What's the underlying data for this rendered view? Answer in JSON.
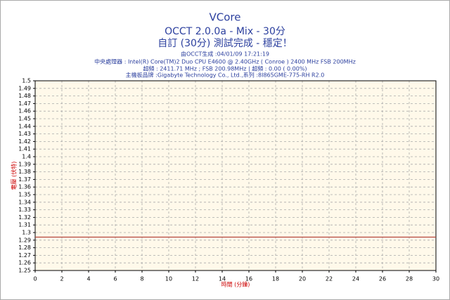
{
  "chart_data": {
    "type": "line",
    "title": "VCore",
    "subtitle": [
      "OCCT 2.0.0a - Mix - 30分",
      "自訂 (30分) 測試完成 - 穩定！"
    ],
    "info": [
      "由OCCT生成 :04/01/09 17:21:19",
      "中央處理器 : Intel(R) Core(TM)2 Duo CPU E4600 @ 2.40GHz ( Conroe ) 2400 MHz FSB 200MHz",
      "超頻 : 2411.71 MHz ; FSB 200.98MHz | 超頻 : 0.00 ( 0.00%)",
      "主機板品牌 :Gigabyte Technology Co., Ltd.,系列 :8I865GME-775-RH R2.0"
    ],
    "x_label": "時間 (分鐘)",
    "y_label": "電壓 (伏特)",
    "x": [
      0,
      30
    ],
    "series": [
      {
        "name": "VCore",
        "color": "#b4463c",
        "values": [
          1.294,
          1.294
        ]
      }
    ],
    "xlim": [
      0,
      30
    ],
    "xticks": [
      0,
      2,
      4,
      6,
      8,
      10,
      12,
      14,
      16,
      18,
      20,
      22,
      24,
      26,
      28,
      30
    ],
    "ylim": [
      1.25,
      1.5
    ],
    "yticks": [
      1.25,
      1.26,
      1.27,
      1.28,
      1.29,
      1.3,
      1.31,
      1.32,
      1.33,
      1.34,
      1.35,
      1.36,
      1.37,
      1.38,
      1.39,
      1.4,
      1.41,
      1.42,
      1.43,
      1.44,
      1.45,
      1.46,
      1.47,
      1.48,
      1.49,
      1.5
    ],
    "grid": true
  }
}
